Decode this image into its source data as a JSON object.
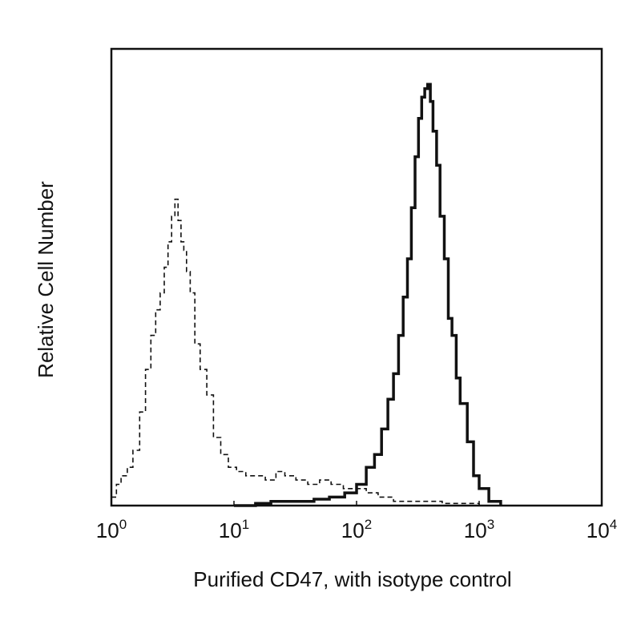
{
  "chart_data": {
    "type": "line",
    "title": "",
    "xlabel": "Purified CD47, with isotype control",
    "ylabel": "Relative Cell Number",
    "x_scale": "log",
    "xlim": [
      1,
      10000
    ],
    "ylim": [
      0,
      100
    ],
    "grid": false,
    "legend": "none",
    "x_ticks": [
      {
        "base": "10",
        "exp": "0"
      },
      {
        "base": "10",
        "exp": "1"
      },
      {
        "base": "10",
        "exp": "2"
      },
      {
        "base": "10",
        "exp": "3"
      },
      {
        "base": "10",
        "exp": "4"
      }
    ],
    "series": [
      {
        "style": "dashed",
        "color": "#111111",
        "x": [
          1.0,
          1.1,
          1.2,
          1.35,
          1.5,
          1.7,
          1.9,
          2.1,
          2.3,
          2.5,
          2.7,
          2.9,
          3.1,
          3.3,
          3.5,
          3.7,
          3.9,
          4.1,
          4.4,
          4.8,
          5.3,
          6.0,
          6.8,
          7.8,
          9.0,
          10.5,
          12.5,
          15,
          18,
          22,
          26,
          32,
          40,
          50,
          62,
          78,
          95,
          120,
          150,
          200,
          300,
          500,
          1000
        ],
        "y": [
          2,
          5,
          7,
          9,
          13,
          22,
          32,
          40,
          46,
          50,
          56,
          62,
          68,
          72,
          67,
          62,
          60,
          55,
          50,
          38,
          32,
          26,
          16,
          12,
          9,
          8,
          7,
          7,
          6,
          8,
          7,
          6,
          5,
          6,
          5,
          4,
          4,
          3,
          2,
          1,
          1,
          0.5,
          0
        ]
      },
      {
        "style": "solid",
        "color": "#111111",
        "x": [
          10,
          15,
          20,
          30,
          45,
          60,
          80,
          100,
          120,
          140,
          160,
          180,
          200,
          220,
          240,
          260,
          280,
          300,
          320,
          340,
          360,
          380,
          400,
          420,
          450,
          480,
          520,
          560,
          600,
          650,
          700,
          800,
          900,
          1000,
          1200,
          1500
        ],
        "y": [
          0,
          0.5,
          1,
          1,
          1.5,
          2,
          3,
          5,
          9,
          12,
          18,
          25,
          31,
          40,
          49,
          58,
          70,
          82,
          91,
          96,
          98,
          99,
          95,
          88,
          80,
          68,
          58,
          44,
          40,
          30,
          24,
          15,
          7,
          4,
          1,
          0
        ]
      }
    ]
  }
}
